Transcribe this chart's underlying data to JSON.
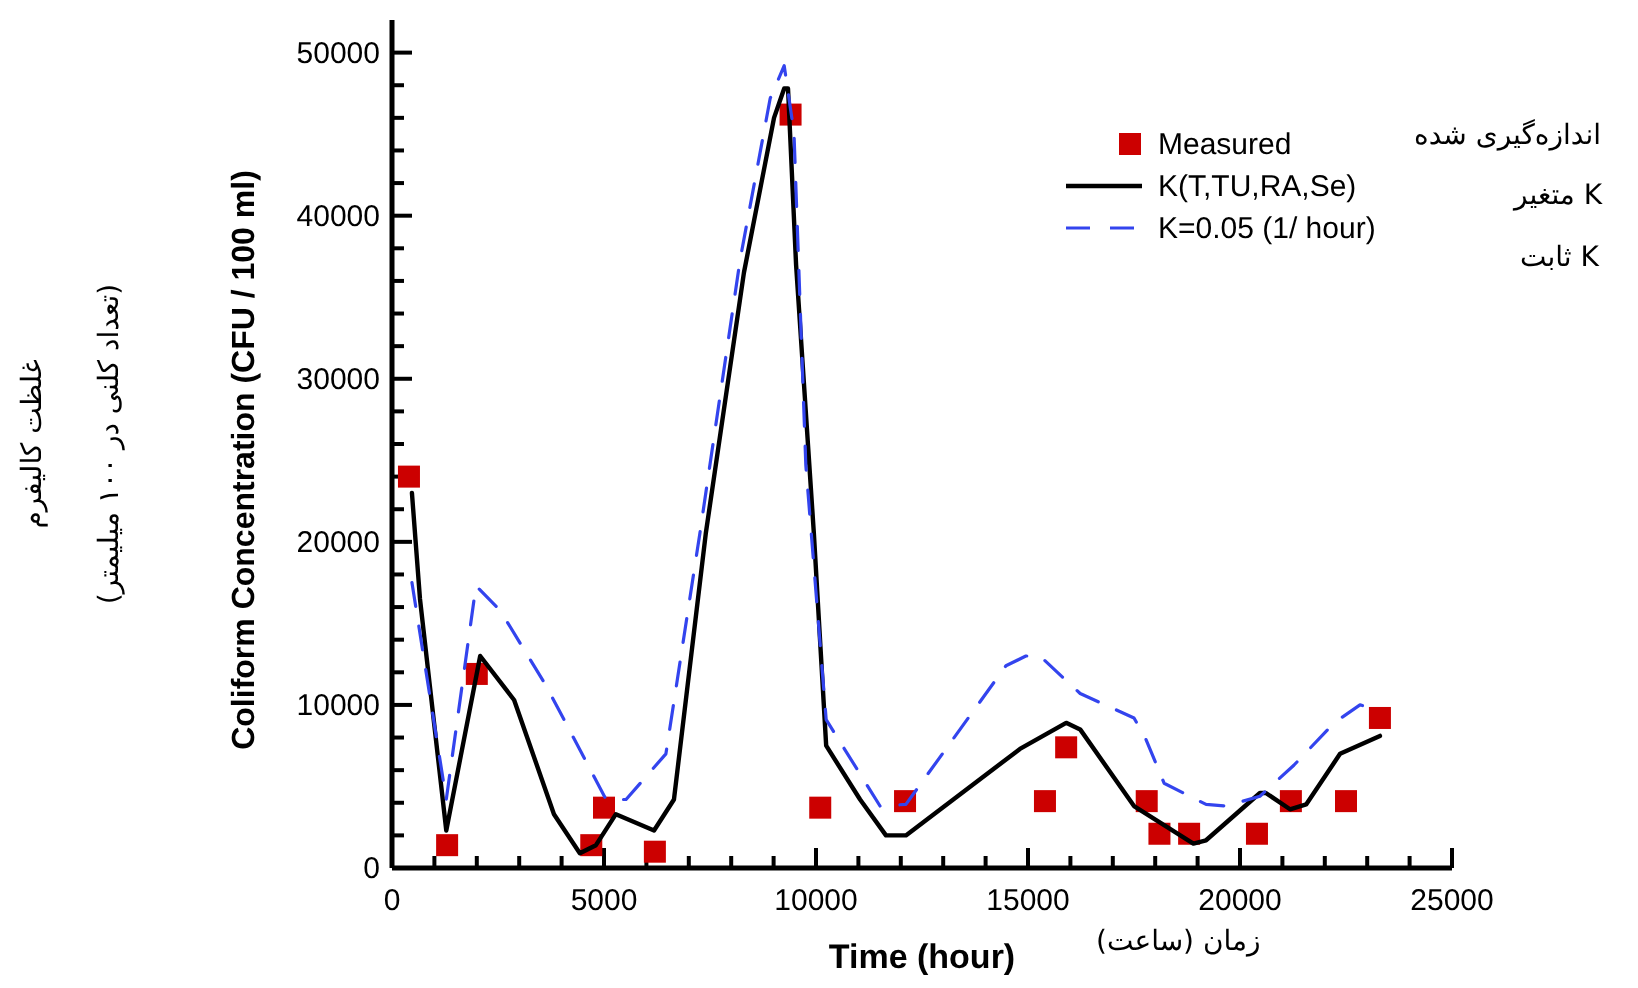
{
  "chart_data": {
    "type": "line",
    "xlabel": "Time (hour)",
    "ylabel": "Coliform Concentration (CFU / 100 ml)",
    "xlim": [
      0,
      25000
    ],
    "ylim": [
      0,
      52000
    ],
    "xticks": [
      0,
      {
        "value": 1000,
        "label": null
      },
      {
        "value": 2000,
        "label": null
      },
      {
        "value": 3000,
        "label": null
      },
      {
        "value": 4000,
        "label": null
      },
      5000,
      {
        "value": 6000,
        "label": null
      },
      {
        "value": 7000,
        "label": null
      },
      {
        "value": 8000,
        "label": null
      },
      {
        "value": 9000,
        "label": null
      },
      10000,
      {
        "value": 11000,
        "label": null
      },
      {
        "value": 12000,
        "label": null
      },
      {
        "value": 13000,
        "label": null
      },
      {
        "value": 14000,
        "label": null
      },
      15000,
      {
        "value": 16000,
        "label": null
      },
      {
        "value": 17000,
        "label": null
      },
      {
        "value": 18000,
        "label": null
      },
      {
        "value": 19000,
        "label": null
      },
      20000,
      {
        "value": 21000,
        "label": null
      },
      {
        "value": 22000,
        "label": null
      },
      {
        "value": 23000,
        "label": null
      },
      {
        "value": 24000,
        "label": null
      },
      25000
    ],
    "yticks": [
      0,
      {
        "value": 2000,
        "label": null
      },
      {
        "value": 4000,
        "label": null
      },
      {
        "value": 6000,
        "label": null
      },
      {
        "value": 8000,
        "label": null
      },
      10000,
      {
        "value": 12000,
        "label": null
      },
      {
        "value": 14000,
        "label": null
      },
      {
        "value": 16000,
        "label": null
      },
      {
        "value": 18000,
        "label": null
      },
      20000,
      {
        "value": 22000,
        "label": null
      },
      {
        "value": 24000,
        "label": null
      },
      {
        "value": 26000,
        "label": null
      },
      {
        "value": 28000,
        "label": null
      },
      30000,
      {
        "value": 32000,
        "label": null
      },
      {
        "value": 34000,
        "label": null
      },
      {
        "value": 36000,
        "label": null
      },
      {
        "value": 38000,
        "label": null
      },
      40000,
      {
        "value": 42000,
        "label": null
      },
      {
        "value": 44000,
        "label": null
      },
      {
        "value": 46000,
        "label": null
      },
      {
        "value": 48000,
        "label": null
      },
      50000
    ],
    "grid": false,
    "legend": "top right",
    "series": [
      {
        "name": "Measured",
        "type": "scatter",
        "marker": "square",
        "color": "#cc0000",
        "x": [
          400,
          1300,
          2000,
          4700,
          5000,
          6200,
          9400,
          10100,
          12100,
          15400,
          15900,
          17800,
          18100,
          18800,
          20400,
          21200,
          22500,
          23300
        ],
        "values": [
          24000,
          1400,
          11900,
          1400,
          3700,
          1000,
          46200,
          3700,
          4100,
          4100,
          7400,
          4100,
          2100,
          2100,
          2100,
          4100,
          4100,
          9200
        ]
      },
      {
        "name": "K(T,TU,RA,Se)",
        "type": "line",
        "marker": "none",
        "line_style": "solid",
        "color": "#000000",
        "x": [
          470,
          660,
          1280,
          2080,
          2880,
          3820,
          4430,
          4810,
          5280,
          6180,
          6650,
          7400,
          8300,
          9010,
          9250,
          9340,
          9530,
          9950,
          10240,
          11040,
          11650,
          12120,
          14810,
          15900,
          16230,
          17500,
          18900,
          19200,
          20470,
          20610,
          21180,
          21560,
          22360,
          23300
        ],
        "values": [
          23000,
          16500,
          2300,
          13000,
          10300,
          3300,
          900,
          1400,
          3300,
          2300,
          4200,
          20500,
          36500,
          46000,
          47800,
          47800,
          37000,
          20500,
          7500,
          4200,
          2000,
          2000,
          7300,
          8900,
          8500,
          3800,
          1500,
          1700,
          4600,
          4600,
          3600,
          3900,
          7000,
          8100
        ]
      },
      {
        "name": "K=0.05 (1/ hour)",
        "type": "line",
        "marker": "none",
        "line_style": "dashed",
        "color": "#3344ee",
        "x": [
          470,
          1280,
          1980,
          2550,
          3630,
          5050,
          5520,
          6460,
          7260,
          8210,
          8920,
          9250,
          9480,
          9760,
          10240,
          11510,
          12120,
          14480,
          14950,
          15280,
          16230,
          17500,
          17780,
          18210,
          19200,
          19670,
          20470,
          21270,
          22220,
          22830,
          23300
        ],
        "values": [
          17500,
          4200,
          17300,
          15800,
          11200,
          4200,
          4200,
          7000,
          20500,
          37300,
          47200,
          49200,
          45100,
          24700,
          9100,
          3800,
          3900,
          12400,
          13000,
          13000,
          10700,
          9200,
          7900,
          5200,
          3900,
          3800,
          4400,
          6300,
          8900,
          10000,
          9700
        ]
      }
    ],
    "annotations": [
      "غلظت کالیفرم",
      "(تعداد کلنی در ۱۰۰ میلیمتر)",
      "زمان (ساعت)",
      "اندازه‌گیری شده",
      "K متغیر",
      "K ثابت"
    ]
  }
}
